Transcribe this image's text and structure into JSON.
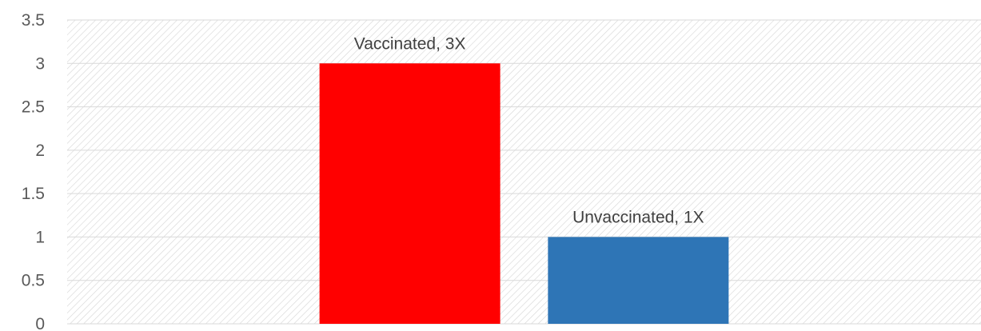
{
  "chart_data": {
    "type": "bar",
    "categories": [
      "Vaccinated",
      "Unvaccinated"
    ],
    "values": [
      3,
      1
    ],
    "data_labels": [
      "Vaccinated, 3X",
      "Unvaccinated, 1X"
    ],
    "colors": [
      "#ff0000",
      "#2e75b6"
    ],
    "title": "",
    "xlabel": "",
    "ylabel": "",
    "ylim": [
      0,
      3.5
    ],
    "yticks": [
      0,
      0.5,
      1,
      1.5,
      2,
      2.5,
      3,
      3.5
    ],
    "ytick_labels": [
      "0",
      "0.5",
      "1",
      "1.5",
      "2",
      "2.5",
      "3",
      "3.5"
    ],
    "grid": true,
    "background": "diagonal-hatch",
    "legend": "none"
  }
}
